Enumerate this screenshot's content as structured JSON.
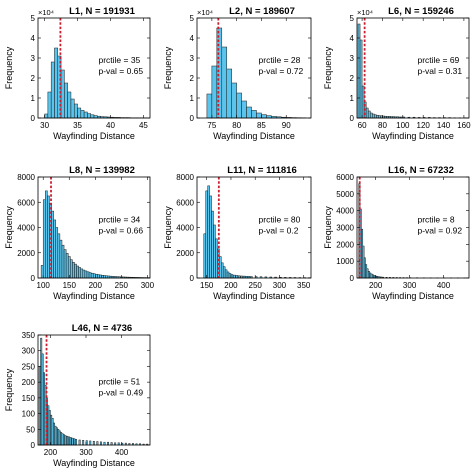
{
  "colors": {
    "bar_fill": "#5bc4ec",
    "bar_edge": "#1a1a1a",
    "median_line": "#cc1e2e",
    "axis": "#000000"
  },
  "chart_data": [
    {
      "type": "bar",
      "title": "L1, N = 191931",
      "xlabel": "Wayfinding Distance",
      "ylabel": "Frequency",
      "y_exponent": "×10⁴",
      "xlim": [
        29,
        46
      ],
      "ylim": [
        0,
        5
      ],
      "xticks": [
        30,
        35,
        40,
        45
      ],
      "yticks": [
        0,
        1,
        2,
        3,
        4,
        5
      ],
      "bins_x": [
        30.0,
        30.5,
        31.0,
        31.5,
        32.0,
        32.5,
        33.0,
        33.5,
        34.0,
        34.5,
        35.0,
        35.5,
        36.0,
        36.5,
        37.0,
        37.5,
        38.0,
        38.5,
        39.0,
        39.5,
        40.0,
        40.5,
        41.0,
        41.5,
        42.0,
        42.5,
        43.0,
        43.5,
        44.0,
        44.5,
        45.0
      ],
      "values": [
        0.2,
        1.3,
        2.8,
        3.5,
        3.1,
        2.4,
        1.75,
        1.3,
        0.95,
        0.7,
        0.5,
        0.38,
        0.3,
        0.22,
        0.16,
        0.12,
        0.09,
        0.07,
        0.06,
        0.05,
        0.04,
        0.03,
        0.03,
        0.02,
        0.02,
        0.02,
        0.01,
        0.01,
        0.01,
        0.01,
        0.01
      ],
      "bin_width": 0.5,
      "reference_x": 32.4,
      "annotations": [
        "prctile = 35",
        "p-val = 0.65"
      ]
    },
    {
      "type": "bar",
      "title": "L2, N = 189607",
      "xlabel": "Wayfinding Distance",
      "ylabel": "Frequency",
      "y_exponent": "×10⁴",
      "xlim": [
        72,
        95
      ],
      "ylim": [
        0,
        5
      ],
      "xticks": [
        75,
        80,
        85,
        90
      ],
      "yticks": [
        0,
        1,
        2,
        3,
        4,
        5
      ],
      "bins_x": [
        74,
        75,
        76,
        77,
        78,
        79,
        80,
        81,
        82,
        83,
        84,
        85,
        86,
        87,
        88,
        89,
        90,
        91,
        92,
        93
      ],
      "values": [
        1.2,
        2.6,
        4.5,
        3.55,
        2.45,
        1.75,
        1.25,
        0.85,
        0.55,
        0.38,
        0.25,
        0.17,
        0.12,
        0.08,
        0.06,
        0.04,
        0.03,
        0.02,
        0.015,
        0.01
      ],
      "bin_width": 1,
      "reference_x": 76.3,
      "annotations": [
        "prctile = 28",
        "p-val = 0.72"
      ]
    },
    {
      "type": "bar",
      "title": "L6, N = 159246",
      "xlabel": "Wayfinding Distance",
      "ylabel": "Frequency",
      "y_exponent": "×10⁴",
      "xlim": [
        55,
        165
      ],
      "ylim": [
        0,
        5
      ],
      "xticks": [
        60,
        80,
        100,
        120,
        140,
        160
      ],
      "yticks": [
        0,
        1,
        2,
        3,
        4,
        5
      ],
      "bins_x": [
        56,
        58,
        60,
        62,
        64,
        66,
        68,
        70,
        72,
        74,
        76,
        78,
        80,
        82,
        84,
        86,
        88,
        90,
        92,
        94,
        96,
        98,
        100,
        105,
        110,
        115,
        120,
        125,
        130,
        135,
        140,
        145,
        150,
        155,
        160
      ],
      "values": [
        4.7,
        3.9,
        1.6,
        0.8,
        0.5,
        0.35,
        0.25,
        0.2,
        0.16,
        0.14,
        0.12,
        0.11,
        0.1,
        0.09,
        0.08,
        0.08,
        0.07,
        0.07,
        0.06,
        0.06,
        0.05,
        0.05,
        0.05,
        0.04,
        0.04,
        0.03,
        0.03,
        0.03,
        0.02,
        0.02,
        0.02,
        0.02,
        0.01,
        0.01,
        0.01
      ],
      "bin_width": 2,
      "reference_x": 62.5,
      "annotations": [
        "prctile = 69",
        "p-val = 0.31"
      ]
    },
    {
      "type": "bar",
      "title": "L8, N = 139982",
      "xlabel": "Wayfinding Distance",
      "ylabel": "Frequency",
      "y_exponent": "",
      "xlim": [
        90,
        305
      ],
      "ylim": [
        0,
        8000
      ],
      "xticks": [
        100,
        150,
        200,
        250,
        300
      ],
      "yticks": [
        0,
        2000,
        4000,
        6000,
        8000
      ],
      "bins_x": [
        96,
        100,
        104,
        108,
        112,
        116,
        120,
        124,
        128,
        132,
        136,
        140,
        144,
        148,
        152,
        156,
        160,
        164,
        168,
        172,
        176,
        180,
        184,
        188,
        192,
        196,
        200,
        204,
        208,
        212,
        216,
        220,
        224,
        228,
        232,
        236,
        240,
        244,
        248,
        252,
        256,
        260,
        264,
        268,
        272,
        276,
        280,
        284,
        288,
        292,
        296,
        300
      ],
      "values": [
        1000,
        6200,
        6900,
        6500,
        5900,
        5300,
        4600,
        4000,
        3500,
        3000,
        2600,
        2250,
        1950,
        1700,
        1450,
        1250,
        1100,
        950,
        830,
        720,
        630,
        560,
        490,
        430,
        380,
        340,
        300,
        270,
        240,
        215,
        195,
        175,
        160,
        145,
        130,
        120,
        110,
        100,
        90,
        85,
        78,
        70,
        65,
        60,
        55,
        50,
        46,
        42,
        38,
        35,
        32,
        30
      ],
      "bin_width": 4,
      "reference_x": 115,
      "annotations": [
        "prctile = 34",
        "p-val = 0.66"
      ]
    },
    {
      "type": "bar",
      "title": "L11, N = 111816",
      "xlabel": "Wayfinding Distance",
      "ylabel": "Frequency",
      "y_exponent": "",
      "xlim": [
        130,
        365
      ],
      "ylim": [
        0,
        8000
      ],
      "xticks": [
        150,
        200,
        250,
        300,
        350
      ],
      "yticks": [
        0,
        2000,
        4000,
        6000,
        8000
      ],
      "bins_x": [
        144,
        148,
        152,
        156,
        160,
        164,
        168,
        172,
        176,
        180,
        184,
        188,
        192,
        196,
        200,
        205,
        210,
        215,
        220,
        225,
        230,
        235,
        240,
        250,
        260,
        270,
        280,
        290,
        300,
        310,
        320,
        330,
        340,
        350,
        360
      ],
      "values": [
        3500,
        6900,
        7300,
        6500,
        5300,
        4200,
        3100,
        2300,
        1700,
        1200,
        900,
        650,
        480,
        360,
        280,
        230,
        200,
        175,
        160,
        150,
        140,
        130,
        120,
        110,
        100,
        90,
        80,
        70,
        60,
        50,
        45,
        40,
        35,
        30,
        25
      ],
      "bin_width": 4,
      "reference_x": 175,
      "annotations": [
        "prctile = 80",
        "p-val = 0.2"
      ]
    },
    {
      "type": "bar",
      "title": "L16, N = 67232",
      "xlabel": "Wayfinding Distance",
      "ylabel": "Frequency",
      "y_exponent": "",
      "xlim": [
        145,
        475
      ],
      "ylim": [
        0,
        6000
      ],
      "xticks": [
        200,
        300,
        400
      ],
      "yticks": [
        0,
        1000,
        2000,
        3000,
        4000,
        5000,
        6000
      ],
      "bins_x": [
        150,
        154,
        158,
        162,
        166,
        170,
        174,
        178,
        182,
        186,
        190,
        194,
        198,
        202,
        206,
        210,
        215,
        220,
        230,
        240,
        250,
        260,
        270,
        280,
        290,
        300,
        320,
        340,
        360,
        380,
        400,
        420,
        440,
        460
      ],
      "values": [
        5600,
        4100,
        2900,
        1900,
        1200,
        800,
        550,
        400,
        300,
        240,
        190,
        150,
        120,
        100,
        85,
        70,
        60,
        50,
        45,
        40,
        35,
        30,
        28,
        25,
        22,
        20,
        18,
        15,
        12,
        10,
        9,
        8,
        6,
        5
      ],
      "bin_width": 4,
      "reference_x": 153,
      "annotations": [
        "prctile = 8",
        "p-val = 0.92"
      ]
    },
    {
      "type": "bar",
      "title": "L46, N = 4736",
      "xlabel": "Wayfinding Distance",
      "ylabel": "Frequency",
      "y_exponent": "",
      "xlim": [
        165,
        480
      ],
      "ylim": [
        0,
        350
      ],
      "xticks": [
        200,
        300,
        400
      ],
      "yticks": [
        0,
        50,
        100,
        150,
        200,
        250,
        300,
        350
      ],
      "bins_x": [
        168,
        172,
        176,
        180,
        184,
        188,
        192,
        196,
        200,
        204,
        208,
        212,
        216,
        220,
        224,
        228,
        232,
        236,
        240,
        245,
        250,
        255,
        260,
        265,
        270,
        280,
        290,
        300,
        310,
        320,
        330,
        340,
        350,
        360,
        370,
        380,
        390,
        400,
        410,
        420,
        430,
        440,
        450,
        460,
        470
      ],
      "values": [
        250,
        340,
        290,
        230,
        190,
        150,
        125,
        110,
        95,
        85,
        70,
        60,
        55,
        50,
        45,
        40,
        36,
        33,
        30,
        28,
        26,
        24,
        22,
        20,
        18,
        16,
        15,
        14,
        13,
        12,
        11,
        10,
        9,
        9,
        8,
        7,
        7,
        6,
        6,
        5,
        5,
        4,
        4,
        3,
        3
      ],
      "bin_width": 4,
      "reference_x": 189,
      "annotations": [
        "prctile = 51",
        "p-val = 0.49"
      ]
    }
  ]
}
